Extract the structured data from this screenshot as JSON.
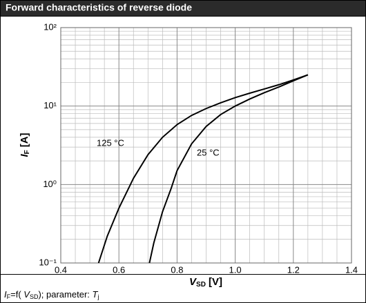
{
  "chart_data": {
    "type": "line",
    "title": "Forward characteristics of reverse diode",
    "xlabel": {
      "symbol": "V",
      "subscript": "SD",
      "unit": "[V]"
    },
    "ylabel": {
      "symbol": "I",
      "subscript": "F",
      "unit": "[A]"
    },
    "footer": [
      "I",
      "F",
      "=f( ",
      "V",
      "SD",
      "); parameter: ",
      "T",
      "j"
    ],
    "xlim": [
      0.4,
      1.4
    ],
    "xticks": [
      0.4,
      0.6,
      0.8,
      {
        "value": 1.0,
        "label": "1.0"
      },
      1.2,
      1.4
    ],
    "xminor": [
      0.45,
      0.5,
      0.55,
      0.65,
      0.7,
      0.75,
      0.85,
      0.9,
      0.95,
      1.05,
      1.1,
      1.15,
      1.25,
      1.3,
      1.35
    ],
    "ylim": [
      0.1,
      100
    ],
    "yscale": "log",
    "yticks": [
      {
        "value": 0.1,
        "label": "10⁻¹"
      },
      {
        "value": 1,
        "label": "10⁰"
      },
      {
        "value": 10,
        "label": "10¹"
      },
      {
        "value": 100,
        "label": "10²"
      }
    ],
    "yminor": [
      0.2,
      0.3,
      0.4,
      0.5,
      0.6,
      0.7,
      0.8,
      0.9,
      2,
      3,
      4,
      5,
      6,
      7,
      8,
      9,
      20,
      30,
      40,
      50,
      60,
      70,
      80,
      90
    ],
    "grid": true,
    "series": [
      {
        "name": "125 °C",
        "color": "#000000",
        "x": [
          0.53,
          0.56,
          0.6,
          0.65,
          0.7,
          0.75,
          0.8,
          0.85,
          0.9,
          0.95,
          1.0,
          1.05,
          1.1,
          1.15,
          1.2,
          1.25
        ],
        "values": [
          0.1,
          0.22,
          0.5,
          1.2,
          2.4,
          4,
          5.8,
          7.6,
          9.3,
          11,
          12.8,
          14.6,
          16.5,
          18.7,
          21.5,
          25
        ]
      },
      {
        "name": "25 °C",
        "color": "#000000",
        "x": [
          0.705,
          0.72,
          0.75,
          0.78,
          0.8,
          0.85,
          0.9,
          0.95,
          1.0,
          1.05,
          1.1,
          1.15,
          1.2,
          1.25
        ],
        "values": [
          0.1,
          0.18,
          0.45,
          0.9,
          1.5,
          3.3,
          5.5,
          7.8,
          10,
          12.3,
          14.8,
          17.5,
          21,
          25
        ]
      }
    ]
  }
}
